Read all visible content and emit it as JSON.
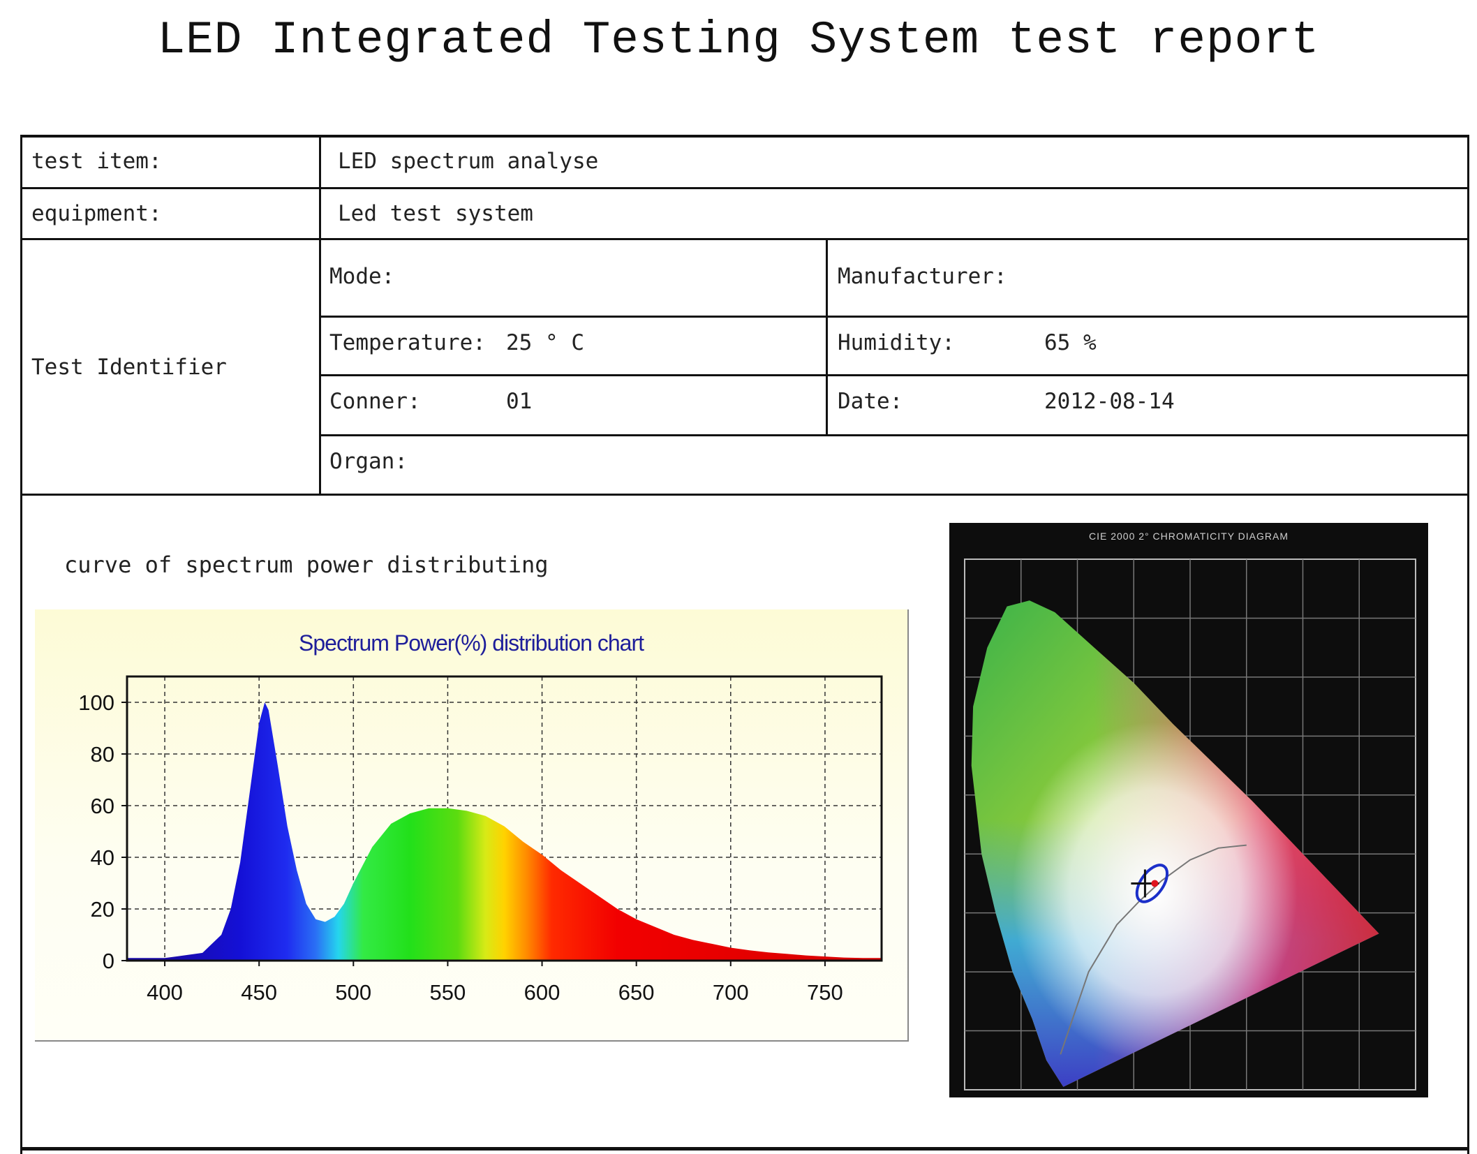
{
  "report": {
    "title": "LED Integrated Testing System test report"
  },
  "table": {
    "test_item_label": "test item:",
    "test_item_value": "LED spectrum analyse",
    "equipment_label": "equipment:",
    "equipment_value": "Led test system",
    "identifier_label": "Test Identifier",
    "mode_label": "Mode:",
    "manufacturer_label": "Manufacturer:",
    "temperature_label": "Temperature:",
    "temperature_value": "25 ° C",
    "humidity_label": "Humidity:",
    "humidity_value": "65 %",
    "conner_label": "Conner:",
    "conner_value": "01",
    "date_label": "Date:",
    "date_value": "2012-08-14",
    "organ_label": "Organ:"
  },
  "section": {
    "spectrum_heading": "curve of spectrum power distributing"
  },
  "colors": {
    "chart_title": "#1e1e9a",
    "chart_bg": "#fdfbd6",
    "cie_bg": "#0d0d0d"
  },
  "chart_data": [
    {
      "type": "area",
      "title": "Spectrum Power(%) distribution chart",
      "xlabel": "",
      "ylabel": "",
      "xlim": [
        380,
        780
      ],
      "ylim": [
        0,
        110
      ],
      "xticks": [
        400,
        450,
        500,
        550,
        600,
        650,
        700,
        750
      ],
      "yticks": [
        0,
        20,
        40,
        60,
        80,
        100
      ],
      "grid": true,
      "fill": "wavelength-colored spectrum",
      "series": [
        {
          "x": [
            380,
            400,
            420,
            430,
            435,
            440,
            445,
            450,
            453,
            455,
            460,
            465,
            470,
            475,
            480,
            485,
            490,
            495,
            500,
            510,
            520,
            530,
            540,
            550,
            560,
            570,
            580,
            590,
            600,
            610,
            620,
            630,
            640,
            650,
            660,
            670,
            680,
            690,
            700,
            710,
            720,
            730,
            740,
            750,
            760,
            770,
            780
          ],
          "values": [
            1,
            1,
            3,
            10,
            20,
            38,
            65,
            92,
            100,
            97,
            75,
            52,
            35,
            22,
            16,
            15,
            17,
            22,
            30,
            44,
            53,
            57,
            59,
            59,
            58,
            56,
            52,
            46,
            41,
            35,
            30,
            25,
            20,
            16,
            13,
            10,
            8,
            6.5,
            5,
            4,
            3.2,
            2.6,
            2,
            1.6,
            1.2,
            1,
            1
          ]
        }
      ]
    },
    {
      "type": "scatter",
      "title": "CIE 2000 2° CHROMATICITY DIAGRAM",
      "xlabel": "",
      "ylabel": "",
      "xlim": [
        0,
        0.8
      ],
      "ylim": [
        0,
        0.9
      ],
      "grid": true,
      "series": [
        {
          "x": [
            0.32
          ],
          "values": [
            0.35
          ]
        }
      ]
    }
  ]
}
